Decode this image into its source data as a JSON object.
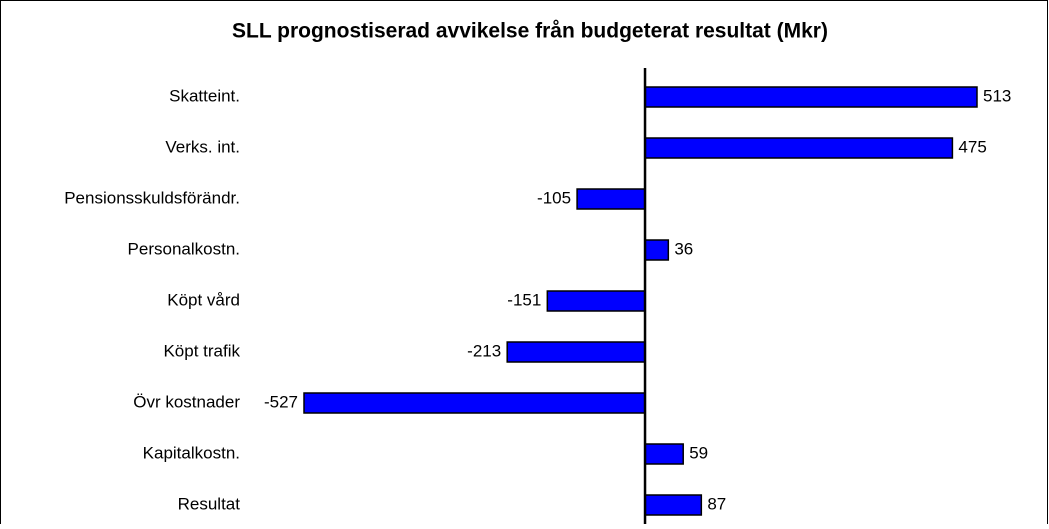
{
  "chart_data": {
    "type": "bar",
    "orientation": "horizontal",
    "title": "SLL prognostiserad avvikelse från budgeterat resultat (Mkr)",
    "categories": [
      "Skatteint.",
      "Verks. int.",
      "Pensionsskuldsförändr.",
      "Personalkostn.",
      "Köpt vård",
      "Köpt trafik",
      "Övr kostnader",
      "Kapitalkostn.",
      "Resultat"
    ],
    "values": [
      513,
      475,
      -105,
      36,
      -151,
      -213,
      -527,
      59,
      87
    ],
    "color": "#0000ff"
  }
}
